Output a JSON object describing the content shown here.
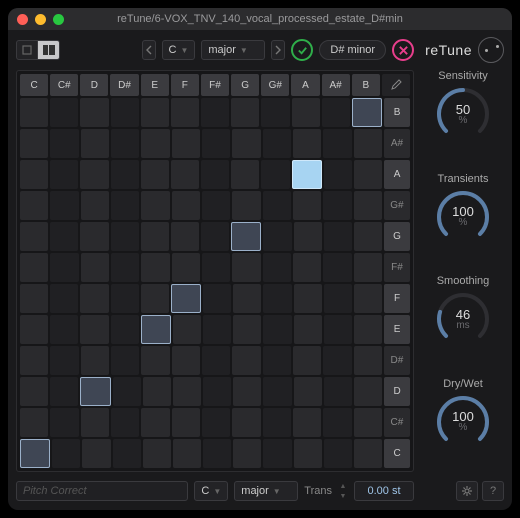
{
  "window": {
    "title": "reTune/6-VOX_TNV_140_vocal_processed_estate_D#min",
    "traffic_colors": [
      "#ff5f57",
      "#febc2e",
      "#28c840"
    ]
  },
  "brand": {
    "name": "reTune"
  },
  "toolbar": {
    "root_note": "C",
    "scale": "major",
    "detected_scale": "D# minor"
  },
  "grid": {
    "columns": [
      "C",
      "C#",
      "D",
      "D#",
      "E",
      "F",
      "F#",
      "G",
      "G#",
      "A",
      "A#",
      "B"
    ],
    "rows": [
      "B",
      "A#",
      "A",
      "G#",
      "G",
      "F#",
      "F",
      "E",
      "D#",
      "D",
      "C#",
      "C"
    ],
    "natural_cols": [
      0,
      2,
      4,
      5,
      7,
      9,
      11
    ],
    "natural_rows": [
      0,
      2,
      4,
      6,
      7,
      9,
      11
    ],
    "lit_cells": [
      {
        "col": 11,
        "row": 0,
        "bright": false
      },
      {
        "col": 9,
        "row": 2,
        "bright": true
      },
      {
        "col": 7,
        "row": 4,
        "bright": false
      },
      {
        "col": 5,
        "row": 6,
        "bright": false
      },
      {
        "col": 4,
        "row": 7,
        "bright": false
      },
      {
        "col": 2,
        "row": 9,
        "bright": false
      },
      {
        "col": 0,
        "row": 11,
        "bright": false
      }
    ]
  },
  "bottom": {
    "placeholder": "Pitch Correct",
    "root_note": "C",
    "scale": "major",
    "trans_label": "Trans",
    "trans_value": "0.00 st"
  },
  "knobs": [
    {
      "label": "Sensitivity",
      "value": "50",
      "unit": "%",
      "pct": 50
    },
    {
      "label": "Transients",
      "value": "100",
      "unit": "%",
      "pct": 100
    },
    {
      "label": "Smoothing",
      "value": "46",
      "unit": "ms",
      "pct": 23
    },
    {
      "label": "Dry/Wet",
      "value": "100",
      "unit": "%",
      "pct": 100
    }
  ],
  "colors": {
    "knob_track": "#2e2e32",
    "knob_fill": "#5b7ea6"
  }
}
